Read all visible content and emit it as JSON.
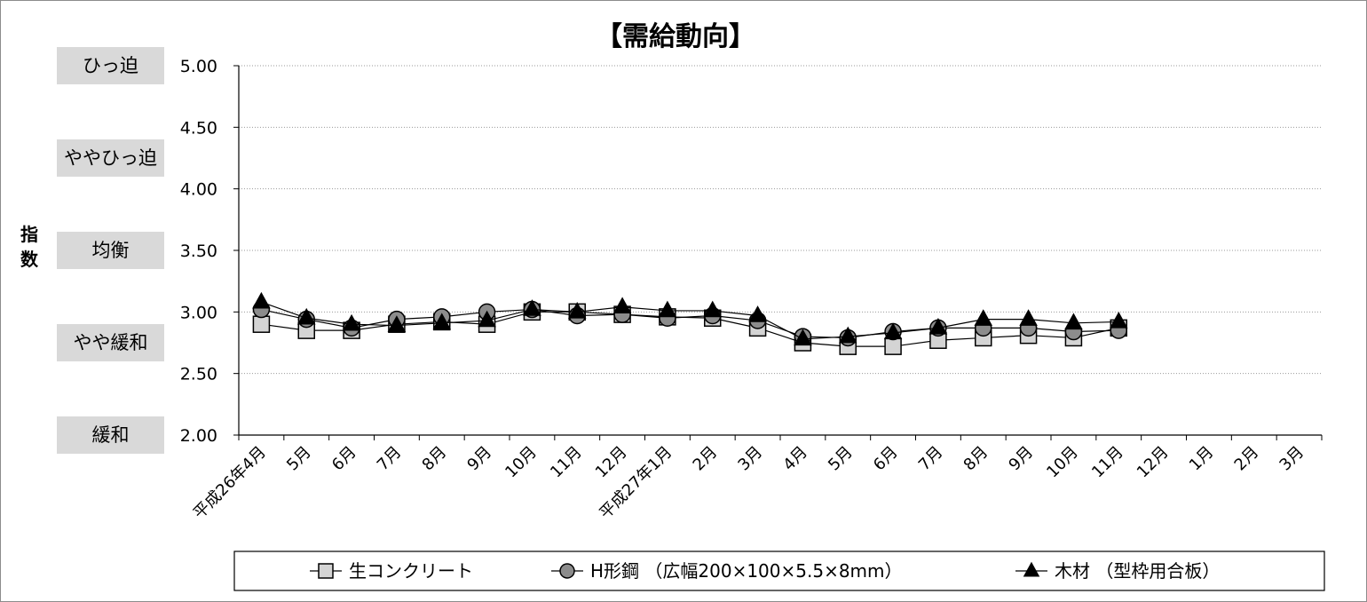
{
  "chart_data": {
    "type": "line",
    "title": "【需給動向】",
    "ylabel": "指数",
    "ylim": [
      2.0,
      5.0
    ],
    "yticks": [
      "2.00",
      "2.50",
      "3.00",
      "3.50",
      "4.00",
      "4.50",
      "5.00"
    ],
    "grid": true,
    "legend_position": "bottom",
    "band_labels": [
      {
        "label": "ひっ迫",
        "value": 5.0
      },
      {
        "label": "ややひっ迫",
        "value": 4.25
      },
      {
        "label": "均衡",
        "value": 3.5
      },
      {
        "label": "やや緩和",
        "value": 2.75
      },
      {
        "label": "緩和",
        "value": 2.0
      }
    ],
    "categories": [
      "平成26年4月",
      "5月",
      "6月",
      "7月",
      "8月",
      "9月",
      "10月",
      "11月",
      "12月",
      "平成27年1月",
      "2月",
      "3月",
      "4月",
      "5月",
      "6月",
      "7月",
      "8月",
      "9月",
      "10月",
      "11月",
      "12月",
      "1月",
      "2月",
      "3月"
    ],
    "series": [
      {
        "name": "生コンクリート",
        "marker": "square",
        "values": [
          2.9,
          2.85,
          2.85,
          2.9,
          2.92,
          2.9,
          3.0,
          3.0,
          2.98,
          2.96,
          2.95,
          2.87,
          2.75,
          2.72,
          2.72,
          2.77,
          2.79,
          2.81,
          2.79,
          2.87,
          null,
          null,
          null,
          null
        ]
      },
      {
        "name": "H形鋼 （広幅200×100×5.5×8mm）",
        "marker": "circle",
        "values": [
          3.02,
          2.94,
          2.87,
          2.94,
          2.96,
          3.0,
          3.02,
          2.97,
          2.98,
          2.95,
          2.97,
          2.93,
          2.8,
          2.79,
          2.84,
          2.87,
          2.87,
          2.87,
          2.84,
          2.85,
          null,
          null,
          null,
          null
        ]
      },
      {
        "name": "木材 （型枠用合板）",
        "marker": "triangle",
        "values": [
          3.08,
          2.95,
          2.9,
          2.89,
          2.91,
          2.93,
          3.02,
          3.0,
          3.04,
          3.01,
          3.01,
          2.97,
          2.78,
          2.8,
          2.83,
          2.87,
          2.94,
          2.94,
          2.91,
          2.92,
          null,
          null,
          null,
          null
        ]
      }
    ]
  }
}
